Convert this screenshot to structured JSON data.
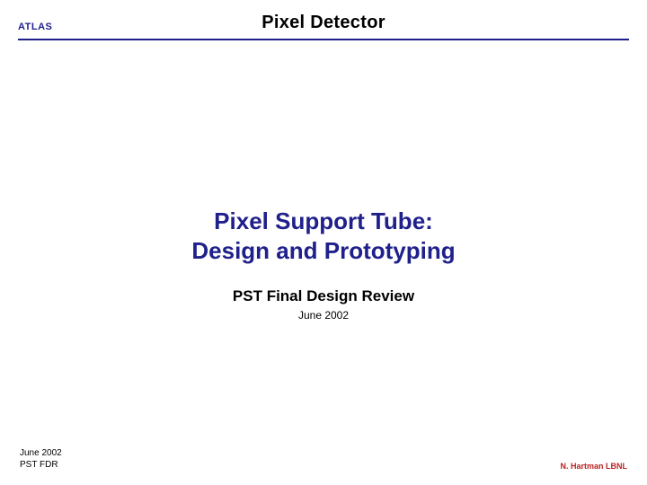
{
  "header": {
    "org_label": "ATLAS",
    "title": "Pixel Detector",
    "org_color": "#20208c",
    "rule_color": "#20208c"
  },
  "main": {
    "title_line1": "Pixel Support Tube:",
    "title_line2": "Design and Prototyping",
    "title_color": "#20208c",
    "title_fontsize": 26,
    "subtitle": "PST Final Design Review",
    "date": "June 2002"
  },
  "footer": {
    "left_line1": "June 2002",
    "left_line2": "PST FDR",
    "right": "N. Hartman LBNL",
    "right_color": "#bb2222"
  }
}
